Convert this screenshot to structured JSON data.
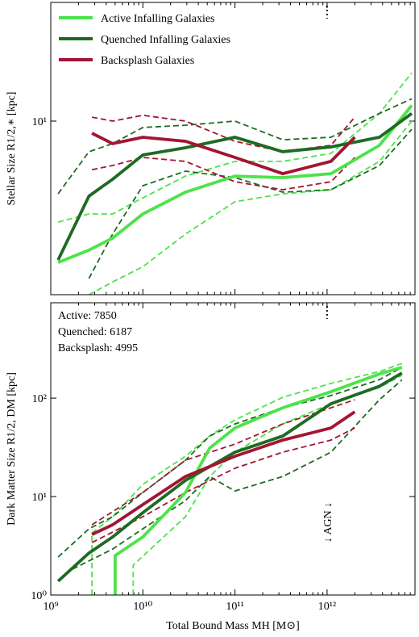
{
  "chart_data": [
    {
      "type": "line",
      "ylabel": "Stellar Size R1/2,∗ [kpc]",
      "xscale": "log",
      "yscale": "log",
      "xlim": [
        1000000000,
        9000000000000
      ],
      "ylim": [
        1.76,
        32.8
      ],
      "xticks": [
        1000000000,
        10000000000,
        100000000000,
        1000000000000
      ],
      "yticks": [
        {
          "value": 10,
          "label": "10¹"
        }
      ],
      "legend": "upper left",
      "vline": 1000000000000,
      "series": [
        {
          "name": "Active Infalling Galaxies",
          "color": "#4de34a",
          "x": [
            1200000000,
            2600000000,
            4700000000,
            10000000000,
            29000000000,
            100000000000,
            330000000000,
            1100000000000,
            3700000000000,
            8300000000000
          ],
          "values": [
            2.43,
            2.75,
            3.1,
            3.95,
            4.91,
            5.77,
            5.68,
            5.91,
            7.85,
            11.7
          ],
          "lower": {
            "x": [
              2600000000,
              4700000000,
              10000000000,
              29000000000,
              100000000000,
              330000000000,
              1100000000000,
              3700000000000,
              8300000000000
            ],
            "values": [
              1.76,
              2.0,
              2.33,
              3.23,
              4.46,
              4.83,
              5.03,
              6.68,
              10
            ]
          },
          "upper": {
            "x": [
              1200000000,
              2600000000,
              4700000000,
              10000000000,
              29000000000,
              100000000000,
              330000000000,
              1100000000000,
              3700000000000,
              8300000000000
            ],
            "values": [
              3.64,
              3.95,
              3.95,
              4.64,
              5.77,
              6.68,
              6.68,
              7.24,
              10.8,
              16.2
            ]
          }
        },
        {
          "name": "Quenched Infalling Galaxies",
          "color": "#1e6b22",
          "x": [
            1200000000,
            2600000000,
            4700000000,
            10000000000,
            29000000000,
            100000000000,
            330000000000,
            1100000000000,
            3700000000000,
            8300000000000
          ],
          "values": [
            2.49,
            4.72,
            5.59,
            7.13,
            7.66,
            8.51,
            7.36,
            7.72,
            8.51,
            10.8
          ],
          "lower": {
            "x": [
              2600000000,
              4700000000,
              10000000000,
              29000000000,
              100000000000,
              330000000000,
              1100000000000,
              3700000000000,
              8300000000000
            ],
            "values": [
              2.07,
              3.23,
              5.24,
              6.06,
              5.68,
              4.91,
              5.03,
              6.41,
              9.22
            ]
          },
          "upper": {
            "x": [
              1200000000,
              2600000000,
              4700000000,
              10000000000,
              29000000000,
              100000000000,
              330000000000,
              1100000000000,
              3700000000000,
              8300000000000
            ],
            "values": [
              4.83,
              7.36,
              7.98,
              9.38,
              9.6,
              10,
              8.3,
              8.51,
              10.8,
              12.5
            ]
          }
        },
        {
          "name": "Backsplash Galaxies",
          "color": "#a31533",
          "x": [
            2800000000,
            4700000000,
            10000000000,
            29000000000,
            100000000000,
            330000000000,
            1100000000000,
            2000000000000
          ],
          "values": [
            8.86,
            7.98,
            8.51,
            8.17,
            6.95,
            5.91,
            6.68,
            8.51
          ],
          "lower": {
            "x": [
              2800000000,
              4700000000,
              10000000000,
              29000000000,
              100000000000,
              330000000000,
              1100000000000,
              2000000000000
            ],
            "values": [
              6.15,
              6.41,
              6.95,
              6.68,
              5.45,
              5.03,
              5.45,
              6.95
            ]
          },
          "upper": {
            "x": [
              2800000000,
              4700000000,
              10000000000,
              29000000000,
              100000000000,
              330000000000,
              1100000000000,
              2000000000000
            ],
            "values": [
              10.4,
              10,
              10.6,
              10,
              8.17,
              7.36,
              7.85,
              10.4
            ]
          }
        }
      ]
    },
    {
      "type": "line",
      "xlabel": "Total Bound Mass MH [M⊙]",
      "ylabel": "Dark Matter Size R1/2, DM [kpc]",
      "xscale": "log",
      "yscale": "log",
      "xlim": [
        1000000000,
        9000000000000
      ],
      "ylim": [
        1,
        930
      ],
      "xticks": [
        {
          "value": 1000000000,
          "label": "10⁹"
        },
        {
          "value": 10000000000,
          "label": "10¹⁰"
        },
        {
          "value": 100000000000,
          "label": "10¹¹"
        },
        {
          "value": 1000000000000,
          "label": "10¹²"
        }
      ],
      "yticks": [
        {
          "value": 1,
          "label": "10⁰"
        },
        {
          "value": 10,
          "label": "10¹"
        },
        {
          "value": 100,
          "label": "10²"
        }
      ],
      "vline": 1000000000000,
      "annotations": [
        "Active: 7850",
        "Quenched: 6187",
        "Backsplash: 4995",
        "↓ AGN ↓"
      ],
      "series": [
        {
          "color": "#4de34a",
          "x": [
            5000000000,
            5000000000,
            10000000000,
            29000000000,
            53000000000,
            100000000000,
            330000000000,
            1100000000000,
            3700000000000,
            6500000000000
          ],
          "values": [
            1,
            2.52,
            3.89,
            11.0,
            31.0,
            49.7,
            79.7,
            116,
            176,
            205
          ],
          "lower": {
            "x": [
              7850000000,
              7850000000,
              29000000000,
              53000000000,
              100000000000,
              330000000000,
              1100000000000,
              3700000000000,
              6500000000000
            ],
            "values": [
              1,
              2.01,
              6.24,
              16.0,
              28.2,
              54.7,
              87.6,
              128,
              170
            ]
          },
          "upper": {
            "x": [
              2800000000,
              2800000000,
              4700000000,
              10000000000,
              29000000000,
              53000000000,
              100000000000,
              330000000000,
              1100000000000,
              3700000000000,
              6500000000000
            ],
            "values": [
              1,
              4.28,
              6.24,
              13.3,
              25.7,
              41.2,
              60.1,
              102,
              141,
              186,
              225
            ]
          }
        },
        {
          "color": "#1e6b22",
          "x": [
            1200000000,
            2600000000,
            4700000000,
            10000000000,
            29000000000,
            100000000000,
            330000000000,
            1100000000000,
            3700000000000,
            6500000000000
          ],
          "values": [
            1.38,
            2.67,
            3.89,
            6.86,
            14.6,
            28.2,
            41.2,
            87.6,
            132,
            180
          ],
          "lower": {
            "x": [
              1720000000,
              4700000000,
              10000000000,
              29000000000,
              53000000000,
              100000000000,
              330000000000,
              1100000000000,
              3700000000000,
              6500000000000
            ],
            "values": [
              1.83,
              2.93,
              4.7,
              9.1,
              16.0,
              11.4,
              16.0,
              28.2,
              96.3,
              153
            ]
          },
          "upper": {
            "x": [
              1200000000,
              2600000000,
              4700000000,
              10000000000,
              29000000000,
              53000000000,
              100000000000,
              330000000000,
              1100000000000,
              3700000000000,
              6500000000000
            ],
            "values": [
              2.43,
              4.7,
              6.24,
              11.0,
              23.4,
              41.2,
              54.7,
              79.7,
              106,
              154,
              205
            ]
          }
        },
        {
          "color": "#a31533",
          "x": [
            2800000000,
            4700000000,
            10000000000,
            29000000000,
            100000000000,
            330000000000,
            1100000000000,
            2000000000000
          ],
          "values": [
            4.12,
            5.17,
            8.28,
            16.0,
            25.7,
            37.5,
            49.7,
            72.6
          ],
          "lower": {
            "x": [
              2800000000,
              10000000000,
              29000000000,
              100000000000,
              330000000000,
              1100000000000,
              2000000000000
            ],
            "values": [
              3.41,
              6.24,
              11.0,
              19.4,
              28.2,
              37.5,
              49.7
            ]
          },
          "upper": {
            "x": [
              2800000000,
              10000000000,
              29000000000,
              100000000000,
              330000000000,
              1100000000000,
              2000000000000
            ],
            "values": [
              5.17,
              11.0,
              23.4,
              34.1,
              54.7,
              79.7,
              96.3
            ]
          }
        }
      ]
    }
  ]
}
